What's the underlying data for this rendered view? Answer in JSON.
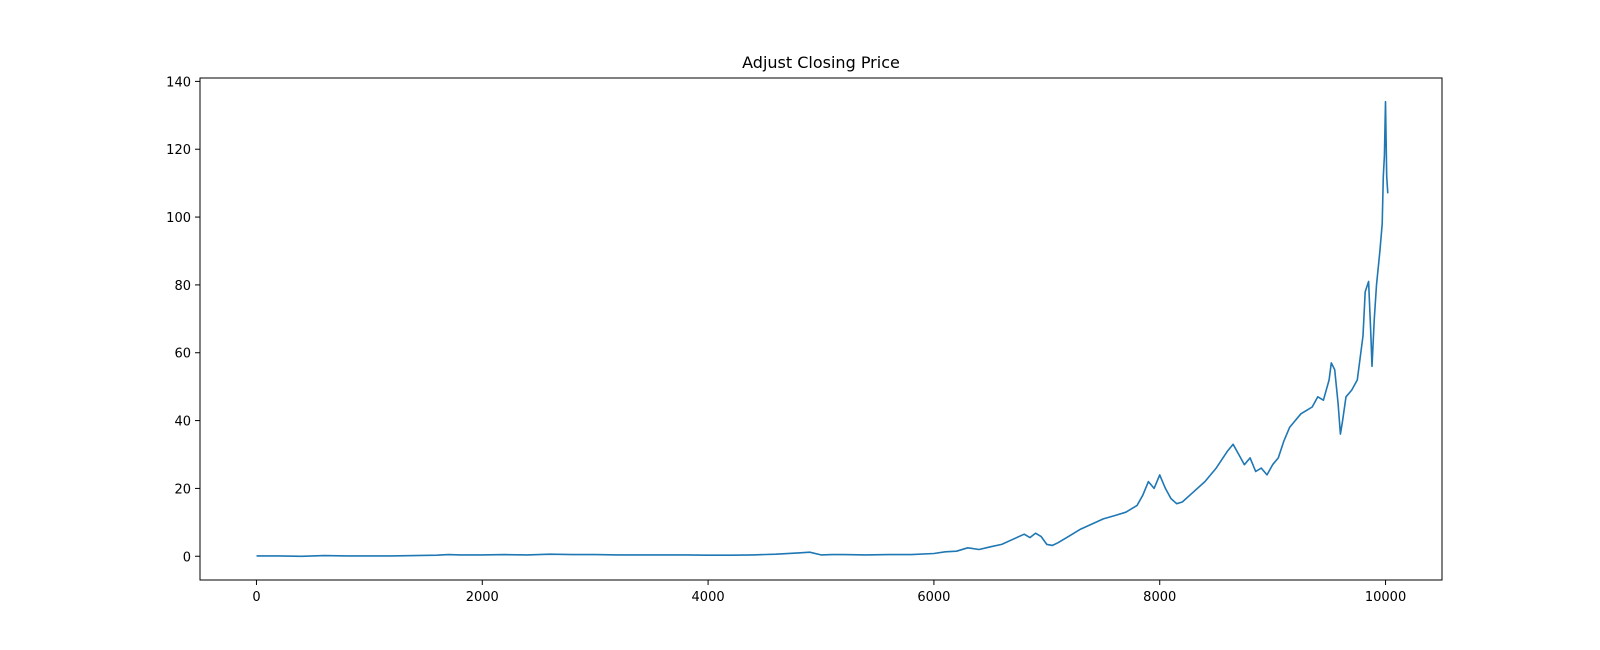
{
  "chart_data": {
    "type": "line",
    "title": "Adjust Closing Price",
    "xlabel": "",
    "ylabel": "",
    "xlim": [
      -500,
      10500
    ],
    "ylim": [
      -7,
      141
    ],
    "x_ticks": [
      0,
      2000,
      4000,
      6000,
      8000,
      10000
    ],
    "x_tick_labels": [
      "0",
      "2000",
      "4000",
      "6000",
      "8000",
      "10000"
    ],
    "y_ticks": [
      0,
      20,
      40,
      60,
      80,
      100,
      120,
      140
    ],
    "y_tick_labels": [
      "0",
      "20",
      "40",
      "60",
      "80",
      "100",
      "120",
      "140"
    ],
    "grid": false,
    "legend": "none",
    "colors": {
      "line": "#1f77b4"
    },
    "series": [
      {
        "x": [
          0,
          200,
          400,
          600,
          800,
          1000,
          1200,
          1400,
          1600,
          1700,
          1800,
          2000,
          2200,
          2400,
          2600,
          2800,
          3000,
          3200,
          3400,
          3600,
          3800,
          4000,
          4200,
          4400,
          4600,
          4800,
          4900,
          5000,
          5100,
          5200,
          5400,
          5600,
          5800,
          6000,
          6100,
          6200,
          6300,
          6400,
          6500,
          6600,
          6700,
          6800,
          6850,
          6900,
          6950,
          7000,
          7050,
          7100,
          7200,
          7300,
          7400,
          7500,
          7600,
          7700,
          7800,
          7850,
          7900,
          7950,
          8000,
          8050,
          8100,
          8150,
          8200,
          8300,
          8400,
          8500,
          8600,
          8650,
          8700,
          8750,
          8800,
          8850,
          8900,
          8950,
          9000,
          9050,
          9100,
          9150,
          9200,
          9250,
          9300,
          9350,
          9400,
          9450,
          9500,
          9520,
          9550,
          9580,
          9600,
          9620,
          9650,
          9700,
          9750,
          9800,
          9820,
          9850,
          9870,
          9880,
          9900,
          9920,
          9950,
          9970,
          9980,
          9990,
          10000,
          10010,
          10020
        ],
        "y": [
          0.1,
          0.1,
          0.0,
          0.2,
          0.1,
          0.1,
          0.1,
          0.2,
          0.3,
          0.5,
          0.4,
          0.4,
          0.5,
          0.4,
          0.6,
          0.5,
          0.5,
          0.4,
          0.4,
          0.4,
          0.4,
          0.3,
          0.3,
          0.4,
          0.6,
          1.0,
          1.2,
          0.4,
          0.5,
          0.5,
          0.4,
          0.5,
          0.5,
          0.8,
          1.3,
          1.5,
          2.5,
          2.0,
          2.8,
          3.5,
          5.0,
          6.5,
          5.5,
          6.8,
          5.8,
          3.5,
          3.2,
          4.0,
          6.0,
          8.0,
          9.5,
          11.0,
          12.0,
          13.0,
          15.0,
          18.0,
          22.0,
          20.0,
          24.0,
          20.0,
          17.0,
          15.5,
          16.0,
          19.0,
          22.0,
          26.0,
          31.0,
          33.0,
          30.0,
          27.0,
          29.0,
          25.0,
          26.0,
          24.0,
          27.0,
          29.0,
          34.0,
          38.0,
          40.0,
          42.0,
          43.0,
          44.0,
          47.0,
          46.0,
          52.0,
          57.0,
          55.0,
          45.0,
          36.0,
          40.0,
          47.0,
          49.0,
          52.0,
          65.0,
          78.0,
          81.0,
          65.0,
          56.0,
          70.0,
          80.0,
          90.0,
          98.0,
          112.0,
          118.0,
          134.0,
          112.0,
          107.0
        ]
      }
    ]
  }
}
